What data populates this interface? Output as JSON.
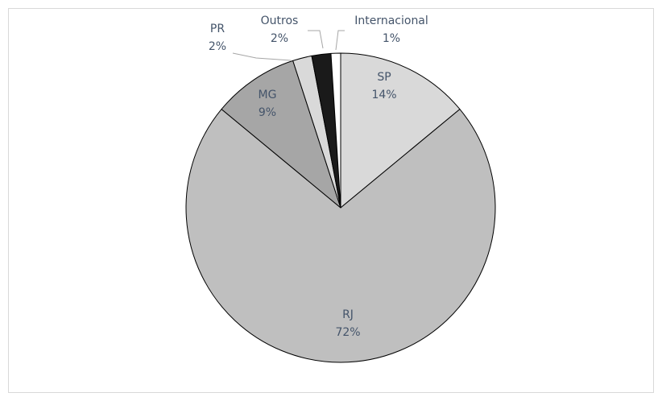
{
  "chart_data": {
    "type": "pie",
    "title": "",
    "legend": "none",
    "slices": [
      {
        "label": "SP",
        "value": 14,
        "value_label": "14%",
        "color": "#d9d9d9"
      },
      {
        "label": "RJ",
        "value": 72,
        "value_label": "72%",
        "color": "#bfbfbf"
      },
      {
        "label": "MG",
        "value": 9,
        "value_label": "9%",
        "color": "#a6a6a6"
      },
      {
        "label": "PR",
        "value": 2,
        "value_label": "2%",
        "color": "#d9d9d9"
      },
      {
        "label": "Outros",
        "value": 2,
        "value_label": "2%",
        "color": "#1a1a1a"
      },
      {
        "label": "Internacional",
        "value": 1,
        "value_label": "1%",
        "color": "#ffffff"
      }
    ]
  }
}
